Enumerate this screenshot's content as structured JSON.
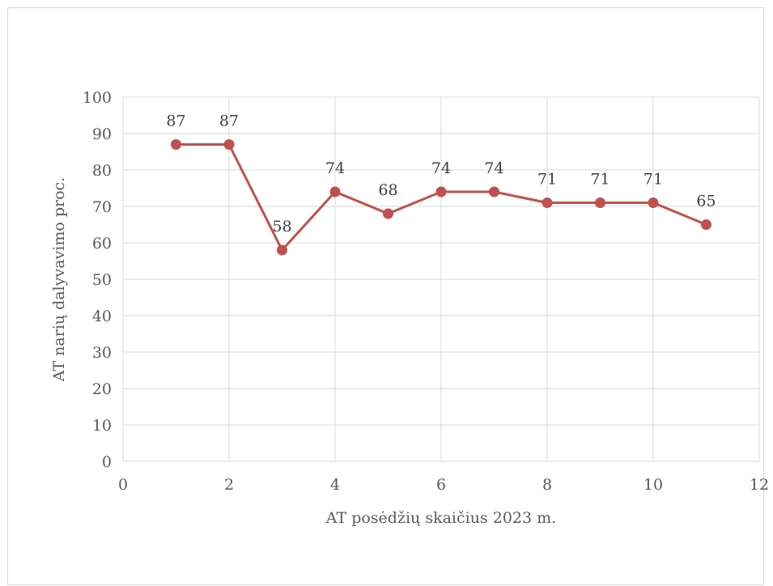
{
  "chart_data": {
    "type": "scatter",
    "title": "",
    "xlabel": "AT posėdžių skaičius 2023 m.",
    "ylabel": "AT narių dalyvavimo proc.",
    "xlim": [
      0,
      12
    ],
    "ylim": [
      0,
      100
    ],
    "xticks": [
      0,
      2,
      4,
      6,
      8,
      10,
      12
    ],
    "yticks": [
      0,
      10,
      20,
      30,
      40,
      50,
      60,
      70,
      80,
      90,
      100
    ],
    "grid": true,
    "legend": "none",
    "series": [
      {
        "color": "#c0504d",
        "x": [
          1,
          2,
          3,
          4,
          5,
          6,
          7,
          8,
          9,
          10,
          11
        ],
        "y": [
          87,
          87,
          58,
          74,
          68,
          74,
          74,
          71,
          71,
          71,
          65
        ]
      }
    ]
  }
}
